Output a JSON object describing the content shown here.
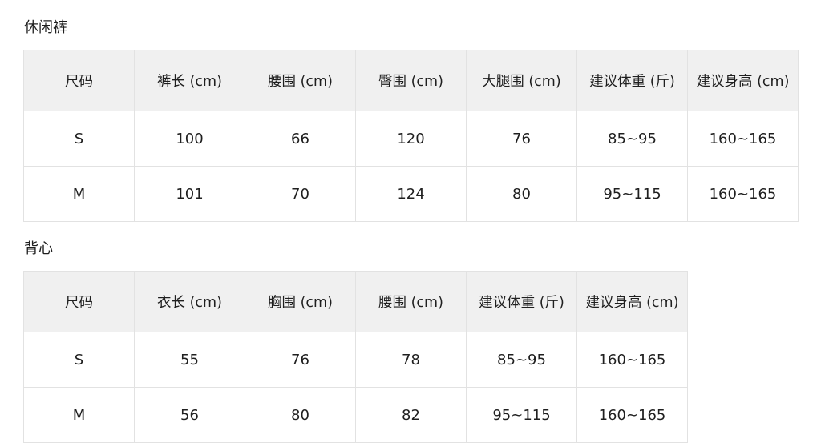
{
  "tables": [
    {
      "title": "休闲裤",
      "headers": [
        "尺码",
        "裤长 (cm)",
        "腰围 (cm)",
        "臀围 (cm)",
        "大腿围 (cm)",
        "建议体重 (斤)",
        "建议身高 (cm)"
      ],
      "rows": [
        [
          "S",
          "100",
          "66",
          "120",
          "76",
          "85~95",
          "160~165"
        ],
        [
          "M",
          "101",
          "70",
          "124",
          "80",
          "95~115",
          "160~165"
        ]
      ]
    },
    {
      "title": "背心",
      "headers": [
        "尺码",
        "衣长 (cm)",
        "胸围 (cm)",
        "腰围 (cm)",
        "建议体重 (斤)",
        "建议身高 (cm)"
      ],
      "rows": [
        [
          "S",
          "55",
          "76",
          "78",
          "85~95",
          "160~165"
        ],
        [
          "M",
          "56",
          "80",
          "82",
          "95~115",
          "160~165"
        ]
      ]
    }
  ]
}
